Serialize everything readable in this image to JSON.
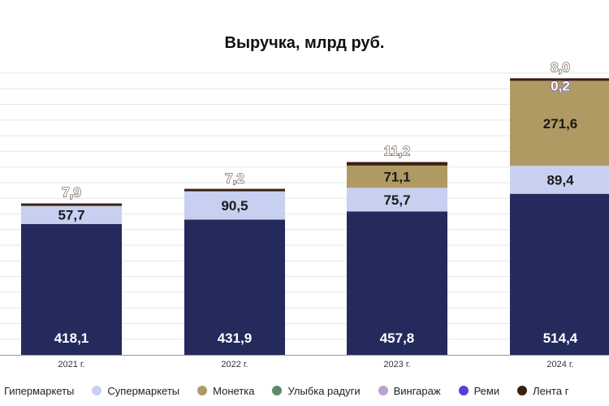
{
  "chart_data": {
    "type": "bar",
    "stacked": true,
    "title": "Выручка, млрд руб.",
    "xlabel": "",
    "ylabel": "",
    "categories": [
      "2021 г.",
      "2022 г.",
      "2023 г.",
      "2024 г."
    ],
    "ylim": [
      0,
      900
    ],
    "grid": true,
    "legend_position": "bottom",
    "series": [
      {
        "name": "Гипермаркеты",
        "color": "#252a5c",
        "values": [
          418.1,
          431.9,
          457.8,
          514.4
        ],
        "labels": [
          "418,1",
          "431,9",
          "457,8",
          "514,4"
        ]
      },
      {
        "name": "Супермаркеты",
        "color": "#c7d0f0",
        "values": [
          57.7,
          90.5,
          75.7,
          89.4
        ],
        "labels": [
          "57,7",
          "90,5",
          "75,7",
          "89,4"
        ]
      },
      {
        "name": "Монетка",
        "color": "#b09a63",
        "values": [
          0,
          0,
          71.1,
          271.6
        ],
        "labels": [
          "",
          "",
          "71,1",
          "271,6"
        ]
      },
      {
        "name": "Улыбка радуги",
        "color": "#5f8a6a",
        "values": [
          0,
          0,
          0,
          0
        ],
        "labels": [
          "",
          "",
          "",
          ""
        ]
      },
      {
        "name": "Вингараж",
        "color": "#b9a3cf",
        "values": [
          0,
          0,
          0,
          0
        ],
        "labels": [
          "",
          "",
          "",
          ""
        ]
      },
      {
        "name": "Реми",
        "color": "#5a3fd6",
        "values": [
          0,
          0,
          0,
          0.2
        ],
        "labels": [
          "",
          "",
          "",
          "0,2"
        ]
      },
      {
        "name": "Лента г",
        "color": "#3a1f10",
        "values": [
          7.9,
          7.2,
          11.2,
          8.0
        ],
        "labels": [
          "7,9",
          "7,2",
          "11,2",
          "8,0"
        ]
      }
    ]
  }
}
